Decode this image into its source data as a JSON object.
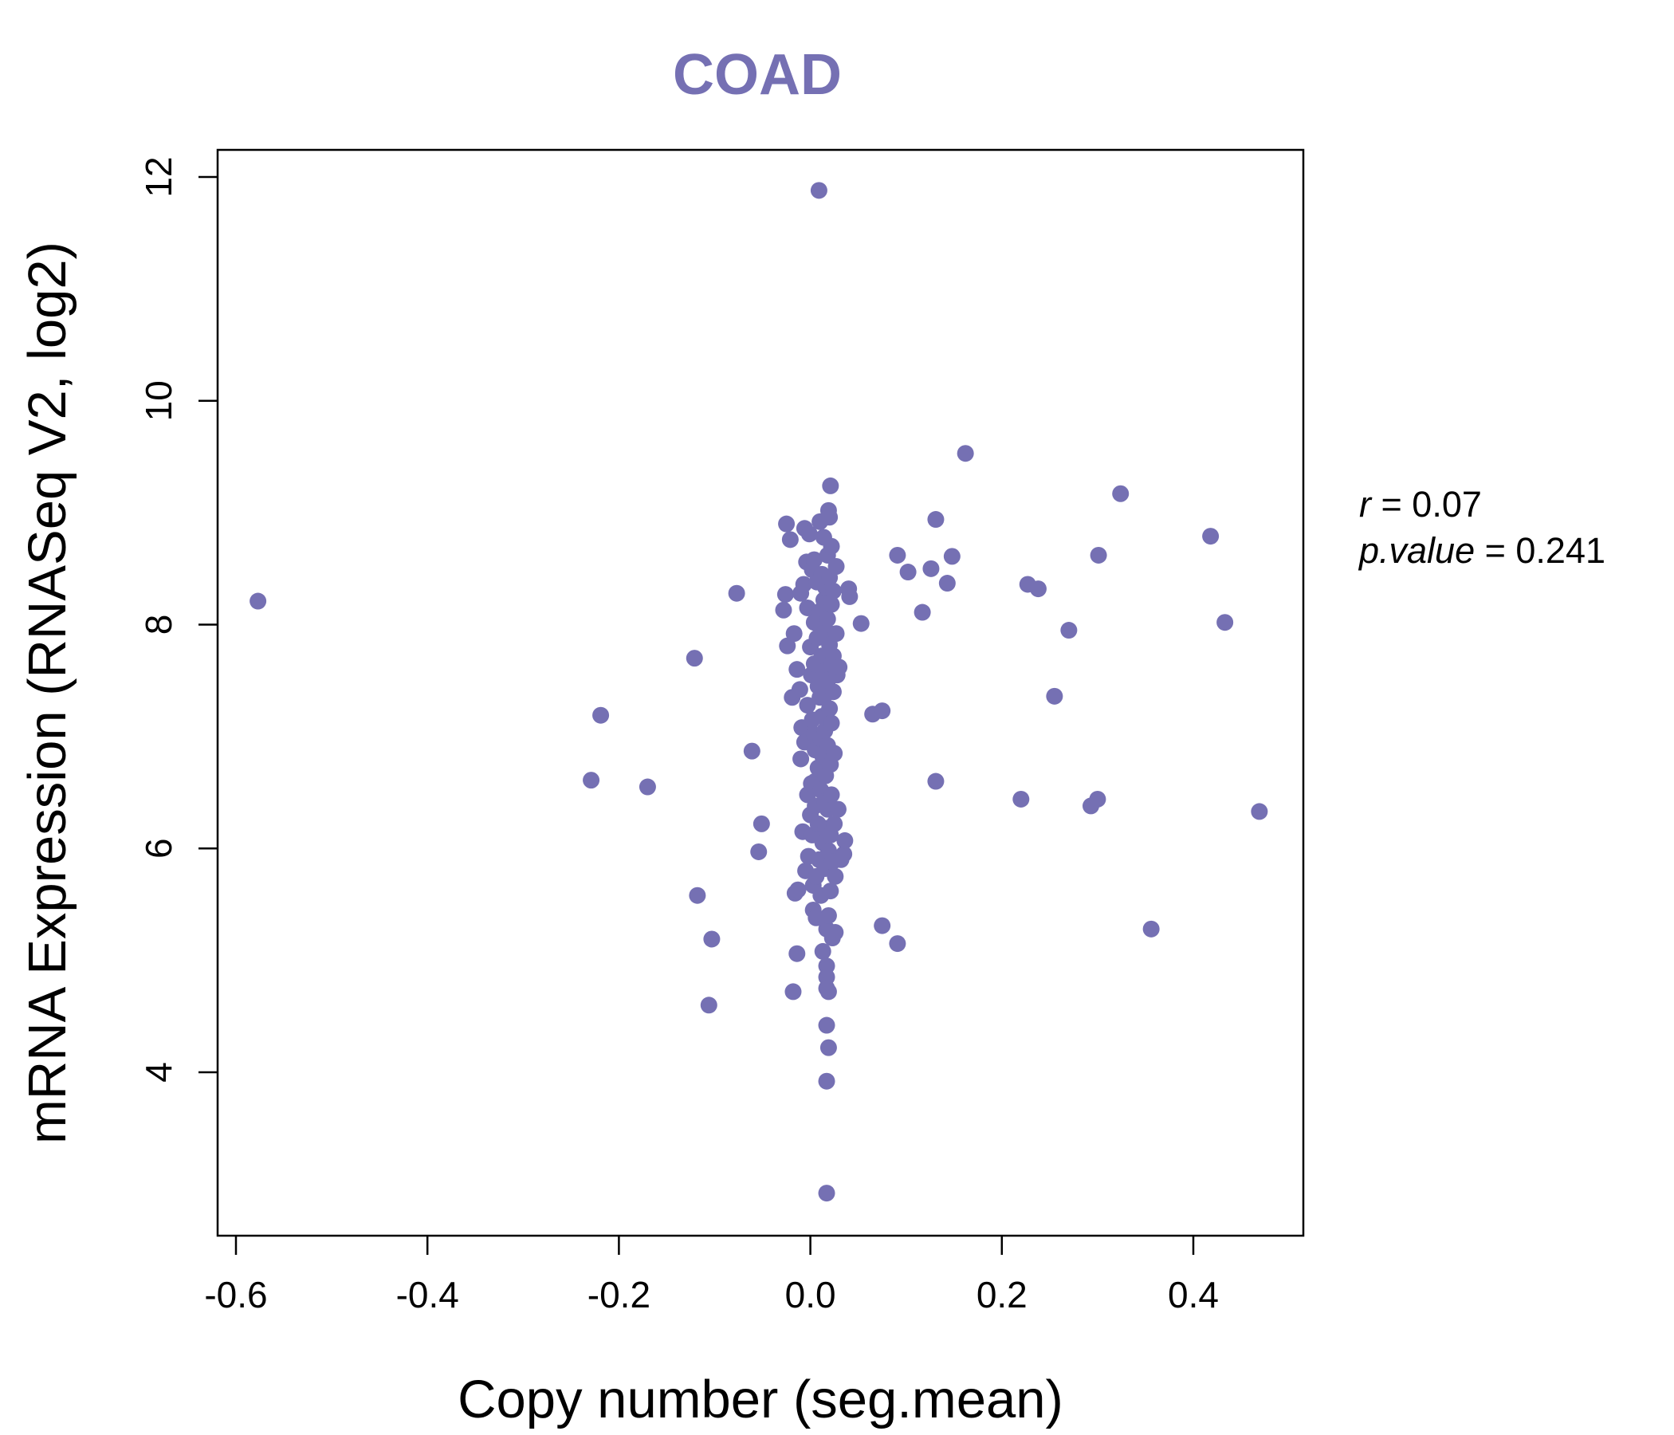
{
  "colors": {
    "accent": "#7570b3",
    "axis": "#000000",
    "background": "#ffffff"
  },
  "stats": {
    "r_label": "r",
    "r_value": "0.07",
    "p_label": "p.value",
    "p_value": "0.241"
  },
  "chart_data": {
    "type": "scatter",
    "title": "COAD",
    "xlabel": "Copy number (seg.mean)",
    "ylabel": "mRNA Expression (RNASeq V2, log2)",
    "xlim": [
      -0.6,
      0.5
    ],
    "ylim": [
      2.8,
      12.3
    ],
    "xticks": [
      -0.6,
      -0.4,
      -0.2,
      0.0,
      0.2,
      0.4
    ],
    "xtick_labels": [
      "-0.6",
      "-0.4",
      "-0.2",
      "0.0",
      "0.2",
      "0.4"
    ],
    "yticks": [
      4,
      6,
      8,
      10,
      12
    ],
    "ytick_labels": [
      "4",
      "6",
      "8",
      "10",
      "12"
    ],
    "series": [
      {
        "name": "samples",
        "points": [
          [
            -0.577,
            8.21
          ],
          [
            -0.229,
            6.61
          ],
          [
            -0.219,
            7.19
          ],
          [
            -0.17,
            6.55
          ],
          [
            -0.121,
            7.7
          ],
          [
            -0.118,
            5.58
          ],
          [
            -0.106,
            4.6
          ],
          [
            -0.103,
            5.19
          ],
          [
            -0.077,
            8.28
          ],
          [
            -0.061,
            6.87
          ],
          [
            -0.054,
            5.97
          ],
          [
            -0.051,
            6.22
          ],
          [
            -0.028,
            8.13
          ],
          [
            -0.026,
            8.27
          ],
          [
            -0.025,
            8.9
          ],
          [
            -0.024,
            7.81
          ],
          [
            -0.021,
            8.76
          ],
          [
            -0.019,
            7.35
          ],
          [
            -0.018,
            4.72
          ],
          [
            -0.017,
            7.92
          ],
          [
            -0.016,
            5.6
          ],
          [
            -0.014,
            7.6
          ],
          [
            -0.013,
            5.63
          ],
          [
            -0.014,
            5.06
          ],
          [
            -0.011,
            7.42
          ],
          [
            -0.01,
            8.28
          ],
          [
            -0.01,
            6.8
          ],
          [
            -0.009,
            7.08
          ],
          [
            -0.008,
            6.15
          ],
          [
            -0.007,
            8.36
          ],
          [
            -0.006,
            8.86
          ],
          [
            -0.006,
            6.95
          ],
          [
            -0.005,
            5.8
          ],
          [
            -0.004,
            8.56
          ],
          [
            -0.003,
            8.15
          ],
          [
            -0.003,
            7.28
          ],
          [
            -0.003,
            6.48
          ],
          [
            -0.002,
            5.93
          ],
          [
            -0.001,
            8.81
          ],
          [
            0.0,
            7.8
          ],
          [
            0.0,
            6.3
          ],
          [
            0.001,
            7.55
          ],
          [
            0.001,
            6.58
          ],
          [
            0.002,
            8.49
          ],
          [
            0.002,
            7.15
          ],
          [
            0.002,
            6.12
          ],
          [
            0.003,
            5.67
          ],
          [
            0.003,
            5.45
          ],
          [
            0.004,
            8.58
          ],
          [
            0.004,
            8.02
          ],
          [
            0.004,
            7.65
          ],
          [
            0.004,
            7.02
          ],
          [
            0.005,
            6.88
          ],
          [
            0.005,
            6.6
          ],
          [
            0.005,
            6.38
          ],
          [
            0.006,
            5.75
          ],
          [
            0.006,
            5.38
          ],
          [
            0.007,
            8.38
          ],
          [
            0.007,
            7.88
          ],
          [
            0.008,
            7.45
          ],
          [
            0.008,
            6.72
          ],
          [
            0.008,
            6.22
          ],
          [
            0.009,
            5.9
          ],
          [
            0.009,
            11.88
          ],
          [
            0.01,
            8.92
          ],
          [
            0.01,
            8.12
          ],
          [
            0.01,
            7.35
          ],
          [
            0.011,
            6.98
          ],
          [
            0.011,
            6.52
          ],
          [
            0.011,
            5.58
          ],
          [
            0.012,
            8.45
          ],
          [
            0.012,
            7.72
          ],
          [
            0.012,
            7.18
          ],
          [
            0.013,
            6.82
          ],
          [
            0.013,
            6.05
          ],
          [
            0.013,
            5.08
          ],
          [
            0.014,
            8.78
          ],
          [
            0.014,
            8.22
          ],
          [
            0.014,
            7.58
          ],
          [
            0.015,
            7.05
          ],
          [
            0.015,
            6.42
          ],
          [
            0.015,
            5.82
          ],
          [
            0.016,
            8.33
          ],
          [
            0.016,
            7.95
          ],
          [
            0.016,
            7.38
          ],
          [
            0.016,
            6.65
          ],
          [
            0.016,
            6.18
          ],
          [
            0.017,
            5.28
          ],
          [
            0.017,
            4.95
          ],
          [
            0.017,
            4.85
          ],
          [
            0.017,
            4.75
          ],
          [
            0.017,
            4.42
          ],
          [
            0.017,
            3.92
          ],
          [
            0.017,
            2.92
          ],
          [
            0.018,
            8.62
          ],
          [
            0.018,
            8.05
          ],
          [
            0.018,
            7.5
          ],
          [
            0.018,
            6.92
          ],
          [
            0.018,
            6.35
          ],
          [
            0.019,
            5.98
          ],
          [
            0.019,
            5.4
          ],
          [
            0.019,
            4.72
          ],
          [
            0.019,
            4.22
          ],
          [
            0.019,
            9.02
          ],
          [
            0.02,
            8.96
          ],
          [
            0.02,
            8.42
          ],
          [
            0.02,
            7.82
          ],
          [
            0.02,
            7.25
          ],
          [
            0.021,
            6.75
          ],
          [
            0.021,
            6.12
          ],
          [
            0.021,
            5.62
          ],
          [
            0.021,
            9.24
          ],
          [
            0.022,
            8.7
          ],
          [
            0.022,
            8.18
          ],
          [
            0.022,
            7.65
          ],
          [
            0.022,
            7.12
          ],
          [
            0.022,
            6.48
          ],
          [
            0.023,
            5.88
          ],
          [
            0.023,
            5.2
          ],
          [
            0.024,
            8.3
          ],
          [
            0.024,
            7.72
          ],
          [
            0.024,
            7.4
          ],
          [
            0.025,
            6.85
          ],
          [
            0.025,
            6.22
          ],
          [
            0.026,
            5.75
          ],
          [
            0.026,
            5.25
          ],
          [
            0.027,
            8.52
          ],
          [
            0.027,
            7.92
          ],
          [
            0.028,
            7.55
          ],
          [
            0.029,
            6.35
          ],
          [
            0.03,
            7.62
          ],
          [
            0.032,
            5.9
          ],
          [
            0.035,
            5.95
          ],
          [
            0.036,
            6.07
          ],
          [
            0.04,
            8.32
          ],
          [
            0.041,
            8.25
          ],
          [
            0.053,
            8.01
          ],
          [
            0.065,
            7.2
          ],
          [
            0.075,
            7.23
          ],
          [
            0.075,
            5.31
          ],
          [
            0.091,
            8.62
          ],
          [
            0.091,
            5.15
          ],
          [
            0.102,
            8.47
          ],
          [
            0.117,
            8.11
          ],
          [
            0.126,
            8.5
          ],
          [
            0.131,
            8.94
          ],
          [
            0.131,
            6.6
          ],
          [
            0.143,
            8.37
          ],
          [
            0.148,
            8.61
          ],
          [
            0.162,
            9.53
          ],
          [
            0.22,
            6.44
          ],
          [
            0.227,
            8.36
          ],
          [
            0.238,
            8.32
          ],
          [
            0.255,
            7.36
          ],
          [
            0.27,
            7.95
          ],
          [
            0.293,
            6.38
          ],
          [
            0.3,
            6.44
          ],
          [
            0.301,
            8.62
          ],
          [
            0.324,
            9.17
          ],
          [
            0.356,
            5.28
          ],
          [
            0.418,
            8.79
          ],
          [
            0.433,
            8.02
          ],
          [
            0.469,
            6.33
          ]
        ]
      }
    ]
  }
}
